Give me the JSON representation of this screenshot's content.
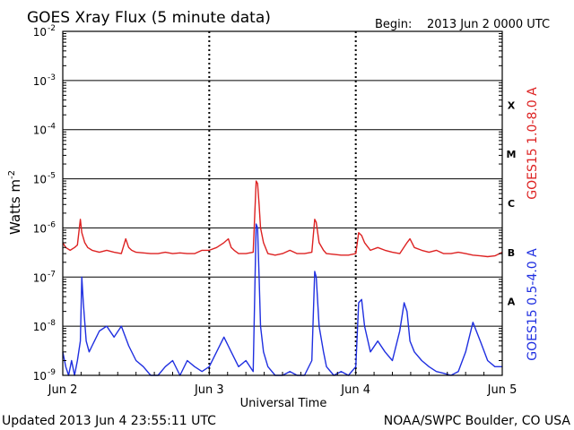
{
  "header": {
    "title": "GOES Xray Flux (5 minute data)",
    "begin_label": "Begin:",
    "begin_value": "2013 Jun 2 0000 UTC"
  },
  "footer": {
    "updated": "Updated 2013 Jun  4 23:55:11 UTC",
    "source": "NOAA/SWPC Boulder, CO USA"
  },
  "colors": {
    "long_channel": "#dd2222",
    "short_channel": "#1f2fe0",
    "frame": "#000000",
    "background": "#ffffff"
  },
  "chart_data": {
    "type": "line",
    "xlabel": "Universal Time",
    "ylabel_base": "Watts m",
    "ylabel_exp": "-2",
    "x_unit": "days",
    "xlim": [
      0,
      3
    ],
    "ylim": [
      1e-09,
      0.01
    ],
    "y_scale": "log",
    "x_ticks": [
      {
        "x": 0,
        "label": "Jun 2"
      },
      {
        "x": 1,
        "label": "Jun 3"
      },
      {
        "x": 2,
        "label": "Jun 4"
      },
      {
        "x": 3,
        "label": "Jun 5"
      }
    ],
    "y_ticks": [
      {
        "exp": -2,
        "base": "10",
        "sup": "-2"
      },
      {
        "exp": -3,
        "base": "10",
        "sup": "-3"
      },
      {
        "exp": -4,
        "base": "10",
        "sup": "-4"
      },
      {
        "exp": -5,
        "base": "10",
        "sup": "-5"
      },
      {
        "exp": -6,
        "base": "10",
        "sup": "-6"
      },
      {
        "exp": -7,
        "base": "10",
        "sup": "-7"
      },
      {
        "exp": -8,
        "base": "10",
        "sup": "-8"
      },
      {
        "exp": -9,
        "base": "10",
        "sup": "-9"
      }
    ],
    "flare_classes": [
      {
        "label": "X",
        "exp": -3.5
      },
      {
        "label": "M",
        "exp": -4.5
      },
      {
        "label": "C",
        "exp": -5.5
      },
      {
        "label": "B",
        "exp": -6.5
      },
      {
        "label": "A",
        "exp": -7.5
      }
    ],
    "grid": "horizontal lines at each decade; dotted vertical lines at day boundaries",
    "series": [
      {
        "name": "GOES15 1.0-8.0 A",
        "color": "#dd2222",
        "x": [
          0.0,
          0.02,
          0.05,
          0.08,
          0.1,
          0.12,
          0.13,
          0.15,
          0.17,
          0.2,
          0.25,
          0.3,
          0.35,
          0.4,
          0.43,
          0.45,
          0.47,
          0.5,
          0.55,
          0.6,
          0.65,
          0.7,
          0.75,
          0.8,
          0.85,
          0.9,
          0.95,
          1.0,
          1.05,
          1.1,
          1.13,
          1.15,
          1.17,
          1.2,
          1.25,
          1.3,
          1.32,
          1.33,
          1.34,
          1.35,
          1.37,
          1.4,
          1.45,
          1.5,
          1.55,
          1.6,
          1.65,
          1.7,
          1.72,
          1.73,
          1.75,
          1.78,
          1.8,
          1.85,
          1.9,
          1.95,
          2.0,
          2.02,
          2.04,
          2.06,
          2.1,
          2.15,
          2.2,
          2.25,
          2.3,
          2.35,
          2.37,
          2.4,
          2.45,
          2.5,
          2.55,
          2.6,
          2.65,
          2.7,
          2.75,
          2.8,
          2.85,
          2.9,
          2.95,
          3.0
        ],
        "y": [
          5e-07,
          4e-07,
          3.5e-07,
          4e-07,
          4.5e-07,
          1.5e-06,
          8e-07,
          5e-07,
          4e-07,
          3.5e-07,
          3.2e-07,
          3.5e-07,
          3.2e-07,
          3e-07,
          6e-07,
          4e-07,
          3.5e-07,
          3.2e-07,
          3.1e-07,
          3e-07,
          3e-07,
          3.2e-07,
          3e-07,
          3.1e-07,
          3e-07,
          3e-07,
          3.5e-07,
          3.5e-07,
          4e-07,
          5e-07,
          6e-07,
          4e-07,
          3.5e-07,
          3e-07,
          3e-07,
          3.2e-07,
          9e-06,
          8e-06,
          3e-06,
          1e-06,
          5e-07,
          3e-07,
          2.8e-07,
          3e-07,
          3.5e-07,
          3e-07,
          3e-07,
          3.2e-07,
          1.5e-06,
          1.3e-06,
          5e-07,
          3.5e-07,
          3e-07,
          2.9e-07,
          2.8e-07,
          2.8e-07,
          3e-07,
          8e-07,
          7e-07,
          5e-07,
          3.5e-07,
          4e-07,
          3.5e-07,
          3.2e-07,
          3e-07,
          5e-07,
          6e-07,
          4e-07,
          3.5e-07,
          3.2e-07,
          3.5e-07,
          3e-07,
          3e-07,
          3.2e-07,
          3e-07,
          2.8e-07,
          2.7e-07,
          2.6e-07,
          2.7e-07,
          3.2e-07
        ]
      },
      {
        "name": "GOES15 0.5-4.0 A",
        "color": "#1f2fe0",
        "x": [
          0.0,
          0.02,
          0.04,
          0.06,
          0.08,
          0.1,
          0.12,
          0.13,
          0.14,
          0.16,
          0.18,
          0.2,
          0.25,
          0.3,
          0.35,
          0.4,
          0.45,
          0.5,
          0.55,
          0.6,
          0.65,
          0.7,
          0.75,
          0.8,
          0.85,
          0.9,
          0.95,
          1.0,
          1.05,
          1.1,
          1.15,
          1.2,
          1.25,
          1.3,
          1.32,
          1.33,
          1.34,
          1.35,
          1.37,
          1.4,
          1.45,
          1.5,
          1.55,
          1.6,
          1.65,
          1.7,
          1.72,
          1.73,
          1.75,
          1.78,
          1.8,
          1.85,
          1.9,
          1.95,
          2.0,
          2.02,
          2.04,
          2.06,
          2.1,
          2.15,
          2.2,
          2.25,
          2.3,
          2.33,
          2.35,
          2.37,
          2.4,
          2.45,
          2.5,
          2.55,
          2.6,
          2.65,
          2.7,
          2.75,
          2.8,
          2.85,
          2.9,
          2.95,
          3.0
        ],
        "y": [
          3e-09,
          1.5e-09,
          1e-09,
          2e-09,
          1e-09,
          2e-09,
          5e-09,
          1e-07,
          3e-08,
          5e-09,
          3e-09,
          4e-09,
          8e-09,
          1e-08,
          6e-09,
          1e-08,
          4e-09,
          2e-09,
          1.5e-09,
          1e-09,
          1e-09,
          1.5e-09,
          2e-09,
          1e-09,
          2e-09,
          1.5e-09,
          1.2e-09,
          1.5e-09,
          3e-09,
          6e-09,
          3e-09,
          1.5e-09,
          2e-09,
          1.2e-09,
          1.2e-06,
          1e-06,
          1e-07,
          1e-08,
          3e-09,
          1.5e-09,
          1e-09,
          1e-09,
          1.2e-09,
          1e-09,
          1e-09,
          2e-09,
          1.3e-07,
          1e-07,
          1e-08,
          3e-09,
          1.5e-09,
          1e-09,
          1.2e-09,
          1e-09,
          1.5e-09,
          3e-08,
          3.5e-08,
          1e-08,
          3e-09,
          5e-09,
          3e-09,
          2e-09,
          8e-09,
          3e-08,
          2e-08,
          5e-09,
          3e-09,
          2e-09,
          1.5e-09,
          1.2e-09,
          1.1e-09,
          1e-09,
          1.2e-09,
          3e-09,
          1.2e-08,
          5e-09,
          2e-09,
          1.5e-09,
          1.5e-09
        ]
      }
    ]
  }
}
